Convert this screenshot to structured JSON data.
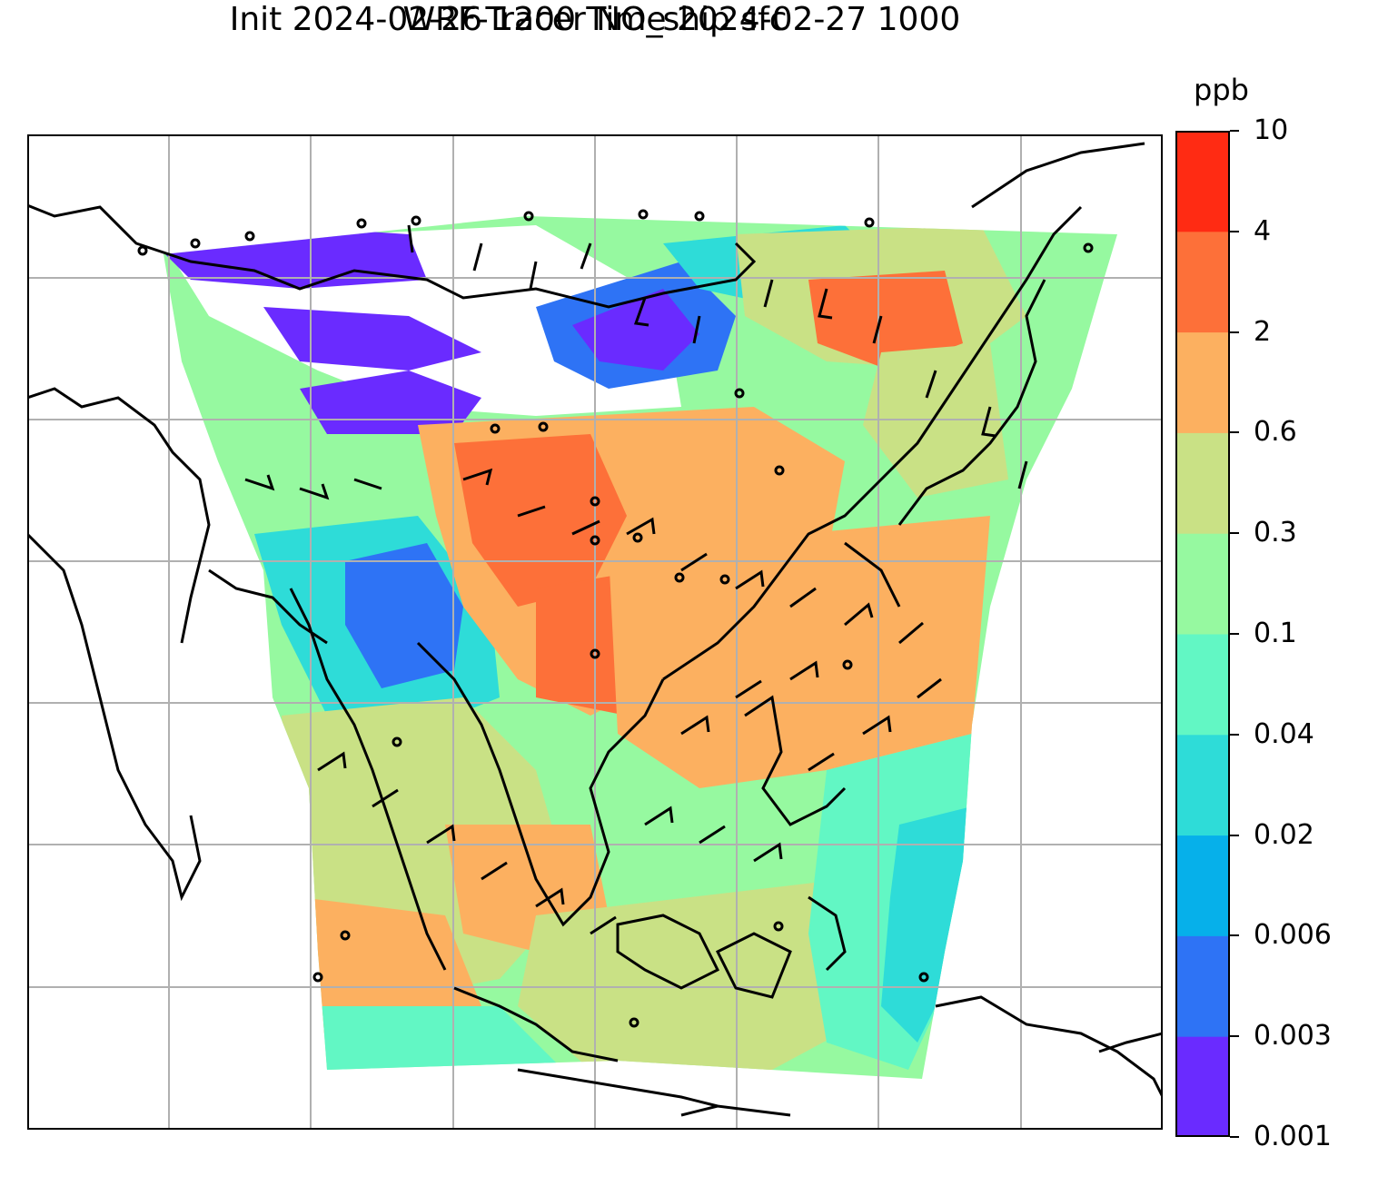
{
  "title_line1": "WRF-Tracer NO_ship sfc",
  "title_line2": "Init 2024-02-26 1200 Time 2024-02-27 1000",
  "colorbar": {
    "unit": "ppb",
    "levels": [
      "0.001",
      "0.003",
      "0.006",
      "0.02",
      "0.04",
      "0.1",
      "0.3",
      "0.6",
      "2",
      "4",
      "10"
    ],
    "colors": [
      "#6a2bff",
      "#2e73f5",
      "#06b0ea",
      "#2edcd8",
      "#62f7c4",
      "#96f9a0",
      "#c9e185",
      "#fcb060",
      "#fd7039",
      "#ff2b13"
    ]
  },
  "map": {
    "gridlines": true,
    "wind_barbs": true,
    "coastlines": true,
    "region": "East / Southeast Asia"
  }
}
